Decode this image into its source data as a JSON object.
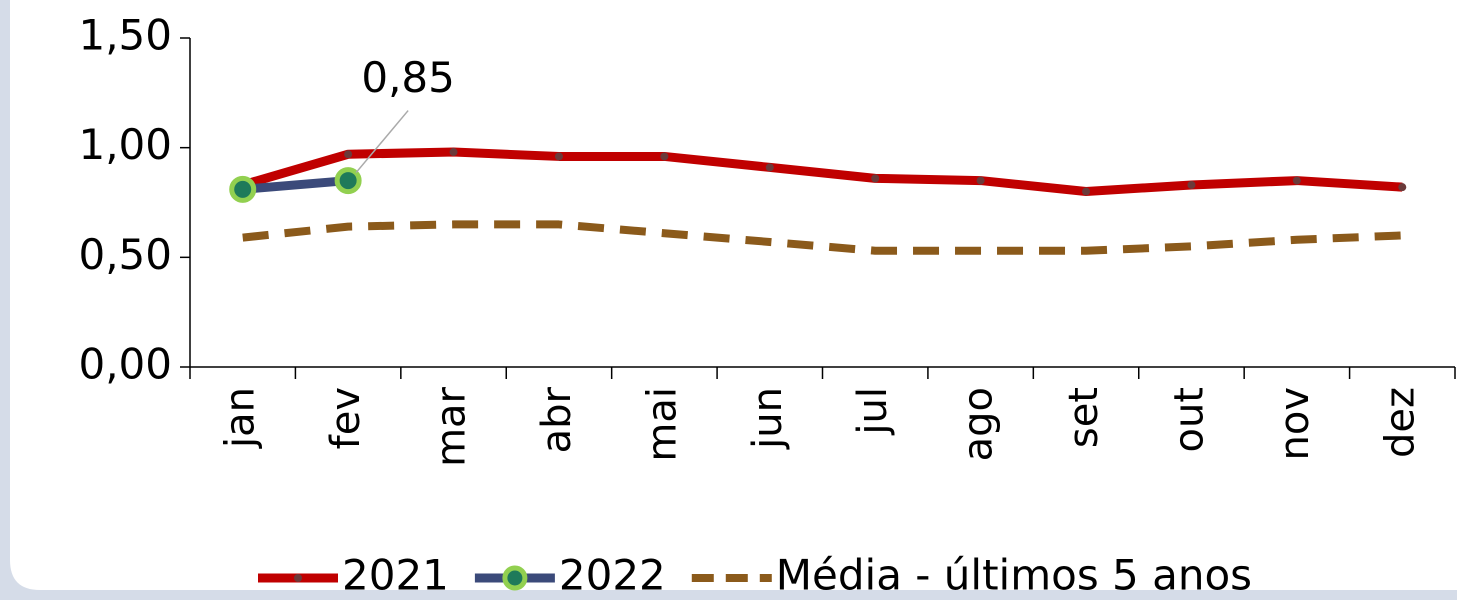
{
  "chart_data": {
    "type": "line",
    "categories": [
      "jan",
      "fev",
      "mar",
      "abr",
      "mai",
      "jun",
      "jul",
      "ago",
      "set",
      "out",
      "nov",
      "dez"
    ],
    "series": [
      {
        "name": "2021",
        "color": "#c00000",
        "values": [
          0.83,
          0.97,
          0.98,
          0.96,
          0.96,
          0.91,
          0.86,
          0.85,
          0.8,
          0.83,
          0.85,
          0.82
        ]
      },
      {
        "name": "2022",
        "color": "#3b4a7a",
        "marker_color": "#92d050",
        "values": [
          0.81,
          0.85,
          null,
          null,
          null,
          null,
          null,
          null,
          null,
          null,
          null,
          null
        ],
        "value_labels": [
          null,
          "0,85",
          null,
          null,
          null,
          null,
          null,
          null,
          null,
          null,
          null,
          null
        ]
      },
      {
        "name": "Média - últimos 5 anos",
        "color": "#8b5a1b",
        "dashed": true,
        "values": [
          0.59,
          0.64,
          0.65,
          0.65,
          0.61,
          0.57,
          0.53,
          0.53,
          0.53,
          0.55,
          0.58,
          0.6
        ]
      }
    ],
    "ylim": [
      0,
      1.5
    ],
    "yticks": [
      {
        "value": 0,
        "label": "0,00"
      },
      {
        "value": 0.5,
        "label": "0,50"
      },
      {
        "value": 1,
        "label": "1,00"
      },
      {
        "value": 1.5,
        "label": "1,50"
      }
    ]
  }
}
